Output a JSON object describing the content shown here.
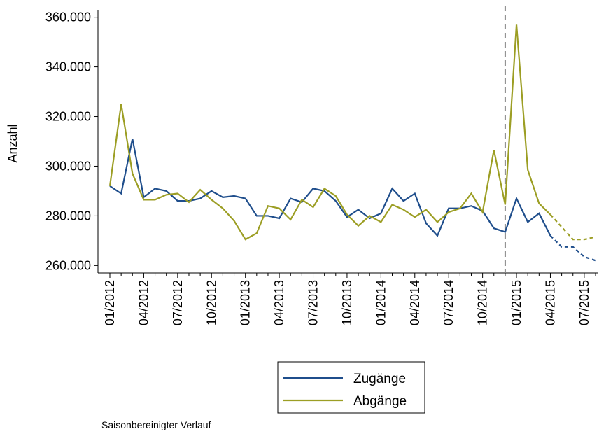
{
  "chart_data": {
    "type": "line",
    "y_label": "Anzahl",
    "footnote": "Saisonbereinigter Verlauf",
    "categories": [
      "01/2012",
      null,
      null,
      "04/2012",
      null,
      null,
      "07/2012",
      null,
      null,
      "10/2012",
      null,
      null,
      "01/2013",
      null,
      null,
      "04/2013",
      null,
      null,
      "07/2013",
      null,
      null,
      "10/2013",
      null,
      null,
      "01/2014",
      null,
      null,
      "04/2014",
      null,
      null,
      "07/2014",
      null,
      null,
      "10/2014",
      null,
      null,
      "01/2015",
      null,
      null,
      "04/2015",
      null,
      null,
      "07/2015",
      null
    ],
    "series": [
      {
        "name": "Zugänge",
        "color": "#1f4e8c",
        "dash_from_index": 39,
        "values": [
          292000,
          289000,
          311000,
          287500,
          291000,
          290000,
          286000,
          286000,
          287000,
          290000,
          287500,
          288000,
          287000,
          280000,
          280000,
          279000,
          287000,
          285500,
          291000,
          290000,
          286000,
          279500,
          282500,
          279000,
          281000,
          291000,
          286000,
          289000,
          277000,
          272000,
          283000,
          283000,
          284000,
          282000,
          275000,
          273500,
          287000,
          277500,
          281000,
          272000,
          267500,
          267500,
          263500,
          262000
        ]
      },
      {
        "name": "Abgänge",
        "color": "#9c9e24",
        "dash_from_index": 39,
        "values": [
          292000,
          325000,
          297000,
          286500,
          286500,
          288500,
          289000,
          285500,
          290500,
          286500,
          283000,
          278000,
          270500,
          273000,
          284000,
          283000,
          278500,
          286500,
          283500,
          291000,
          288000,
          280500,
          276000,
          280000,
          277500,
          284500,
          282500,
          279500,
          282500,
          277500,
          281500,
          283000,
          289000,
          281500,
          306500,
          284500,
          357000,
          298500,
          285000,
          280500,
          275500,
          270500,
          270500,
          271500
        ]
      }
    ],
    "vline_index": 35,
    "ylim": [
      257000,
      363000
    ],
    "yticks": [
      {
        "value": 260000,
        "label": "260.000"
      },
      {
        "value": 280000,
        "label": "280.000"
      },
      {
        "value": 300000,
        "label": "300.000"
      },
      {
        "value": 320000,
        "label": "320.000"
      },
      {
        "value": 340000,
        "label": "340.000"
      },
      {
        "value": 360000,
        "label": "360.000"
      }
    ],
    "legend": "bottom"
  }
}
